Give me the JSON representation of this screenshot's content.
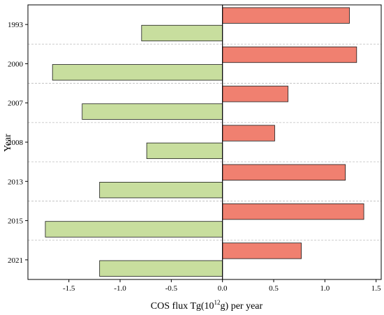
{
  "chart_data": {
    "type": "bar",
    "orientation": "horizontal",
    "categories": [
      "1993",
      "2000",
      "2007",
      "2008",
      "2013",
      "2015",
      "2021"
    ],
    "series": [
      {
        "values": [
          1.24,
          1.31,
          0.64,
          0.51,
          1.2,
          1.38,
          0.77
        ],
        "color": "#F08070"
      },
      {
        "values": [
          -0.79,
          -1.66,
          -1.37,
          -0.74,
          -1.2,
          -1.73,
          -1.2
        ],
        "color": "#C8DE9E"
      }
    ],
    "xlabel": "COS flux Tg(10",
    "xlabel_sup": "12",
    "xlabel_end": "g) per year",
    "ylabel": "Year",
    "xlim": [
      -1.9,
      1.55
    ],
    "xticks": [
      -1.5,
      -1.0,
      -0.5,
      0.0,
      0.5,
      1.0,
      1.5
    ],
    "xtick_labels": [
      "-1.5",
      "-1.0",
      "-0.5",
      "0.0",
      "0.5",
      "1.0",
      "1.5"
    ],
    "grid": "dashed horizontal separators between categories",
    "legend": "none"
  }
}
